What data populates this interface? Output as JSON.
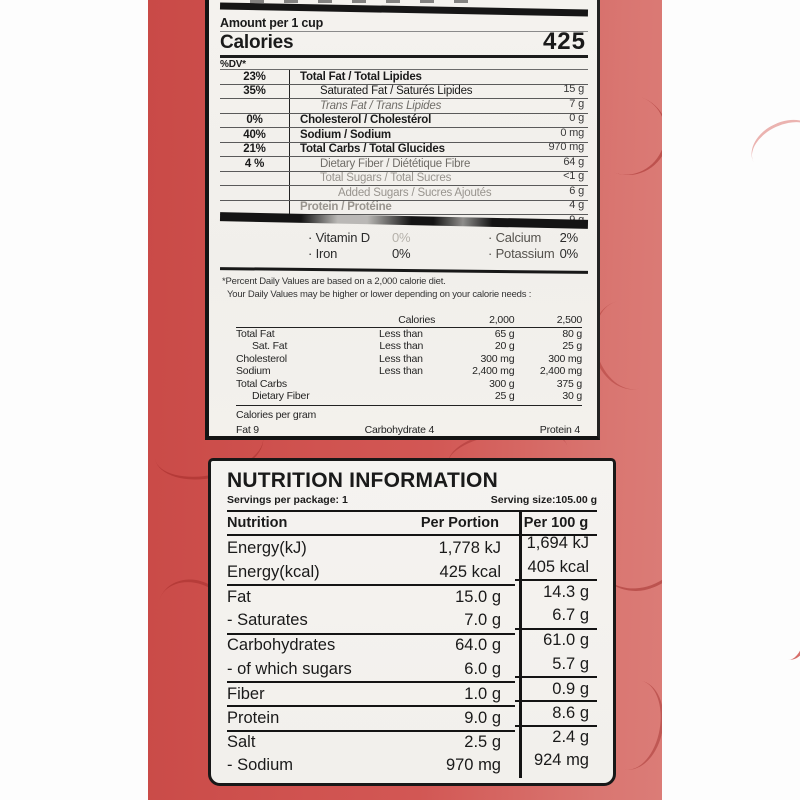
{
  "colors": {
    "package_red": "#d0504d",
    "package_red_light": "#d97a74",
    "label_background": "#f2f0ec",
    "ink": "#1a1a1a"
  },
  "label_top": {
    "amount_per": "Amount per 1 cup",
    "calories_label": "Calories",
    "calories_value": "425",
    "dv_header": "%DV*",
    "rows": [
      {
        "dv": "23%",
        "name": "Total Fat / Total Lipides",
        "value": "15 g"
      },
      {
        "dv": "35%",
        "name": "Saturated Fat / Saturés Lipides",
        "value": "7 g"
      },
      {
        "dv": "",
        "name": "Trans Fat / Trans Lipides",
        "value": "0 g"
      },
      {
        "dv": "0%",
        "name": "Cholesterol / Cholestérol",
        "value": "0 mg"
      },
      {
        "dv": "40%",
        "name": "Sodium / Sodium",
        "value": "970 mg"
      },
      {
        "dv": "21%",
        "name": "Total Carbs / Total Glucides",
        "value": "64 g"
      },
      {
        "dv": "4 %",
        "name": "Dietary Fiber / Diététique Fibre",
        "value": "<1 g"
      },
      {
        "dv": "",
        "name": "Total Sugars / Total Sucres",
        "value": "6 g"
      },
      {
        "dv": "",
        "name": "Added Sugars / Sucres Ajoutés",
        "value": "4 g"
      },
      {
        "dv": "",
        "name": "Protein / Protéine",
        "value": "9 g"
      }
    ],
    "bullet": "·",
    "micros": [
      {
        "name": "Vitamin D",
        "value": "0%"
      },
      {
        "name": "Calcium",
        "value": "2%"
      },
      {
        "name": "Iron",
        "value": "0%"
      },
      {
        "name": "Potassium",
        "value": "0%"
      }
    ],
    "footnote1": "*Percent Daily Values are based on a 2,000 calorie diet.",
    "footnote2": "Your Daily Values may be higher or lower depending  on your calorie needs :",
    "dv_table": {
      "col_calories": "Calories",
      "col_2000": "2,000",
      "col_2500": "2,500",
      "rows": [
        {
          "name": "Total Fat",
          "cond": "Less than",
          "v2000": "65 g",
          "v2500": "80 g"
        },
        {
          "name": "Sat. Fat",
          "cond": "Less than",
          "v2000": "20 g",
          "v2500": "25 g"
        },
        {
          "name": "Cholesterol",
          "cond": "Less than",
          "v2000": "300 mg",
          "v2500": "300 mg"
        },
        {
          "name": "Sodium",
          "cond": "Less than",
          "v2000": "2,400 mg",
          "v2500": "2,400 mg"
        },
        {
          "name": "Total Carbs",
          "cond": "",
          "v2000": "300 g",
          "v2500": "375 g"
        },
        {
          "name": "Dietary Fiber",
          "cond": "",
          "v2000": "25 g",
          "v2500": "30 g"
        }
      ]
    },
    "cpg": {
      "title": "Calories per gram",
      "fat": "Fat 9",
      "carb": "Carbohydrate 4",
      "protein": "Protein 4"
    }
  },
  "label_bottom": {
    "title": "NUTRITION INFORMATION",
    "servings": "Servings per package: 1",
    "serving_size": "Serving size:105.00 g",
    "col_nutrition": "Nutrition",
    "col_portion": "Per Portion",
    "col_100": "Per 100 g",
    "rows": [
      {
        "name": "Energy(kJ)",
        "portion": "1,778 kJ",
        "per100": "1,694 kJ"
      },
      {
        "name": "Energy(kcal)",
        "portion": "425 kcal",
        "per100": "405 kcal"
      },
      {
        "name": "Fat",
        "portion": "15.0 g",
        "per100": "14.3 g"
      },
      {
        "name": "- Saturates",
        "portion": "7.0 g",
        "per100": "6.7 g"
      },
      {
        "name": "Carbohydrates",
        "portion": "64.0 g",
        "per100": "61.0 g"
      },
      {
        "name": "- of which sugars",
        "portion": "6.0 g",
        "per100": "5.7 g"
      },
      {
        "name": "Fiber",
        "portion": "1.0 g",
        "per100": "0.9 g"
      },
      {
        "name": "Protein",
        "portion": "9.0 g",
        "per100": "8.6 g"
      },
      {
        "name": "Salt",
        "portion": "2.5 g",
        "per100": "2.4 g"
      },
      {
        "name": "- Sodium",
        "portion": "970 mg",
        "per100": "924 mg"
      }
    ]
  }
}
